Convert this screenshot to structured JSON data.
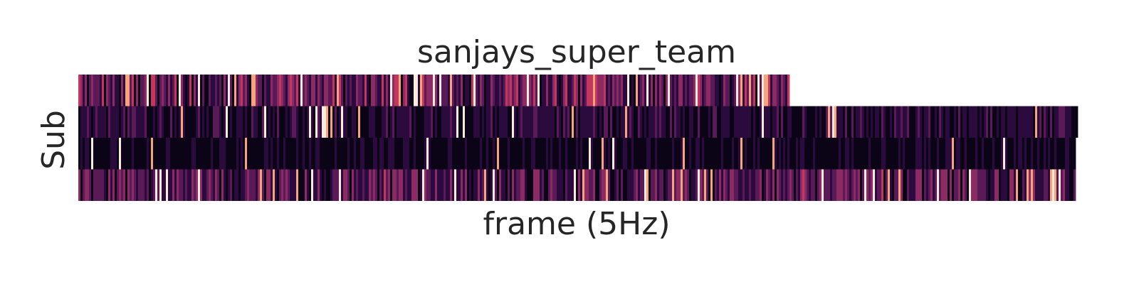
{
  "chart_data": {
    "type": "heatmap",
    "title": "sanjays_super_team",
    "xlabel": "frame (5Hz)",
    "ylabel": "Sub",
    "rows": 4,
    "grid": false,
    "legend": "none",
    "colormap": [
      "#0b0417",
      "#2b0a3d",
      "#5a1a57",
      "#8c2a64",
      "#c2375e",
      "#ea5f4e",
      "#f6a47b",
      "#faebdd"
    ],
    "series": [
      {
        "length_fraction": 0.713,
        "mean_intensity": 0.3,
        "spikiness": 0.1
      },
      {
        "length_fraction": 1.0,
        "mean_intensity": 0.16,
        "spikiness": 0.05
      },
      {
        "length_fraction": 0.998,
        "mean_intensity": 0.09,
        "spikiness": 0.03
      },
      {
        "length_fraction": 0.998,
        "mean_intensity": 0.28,
        "spikiness": 0.08
      }
    ]
  }
}
